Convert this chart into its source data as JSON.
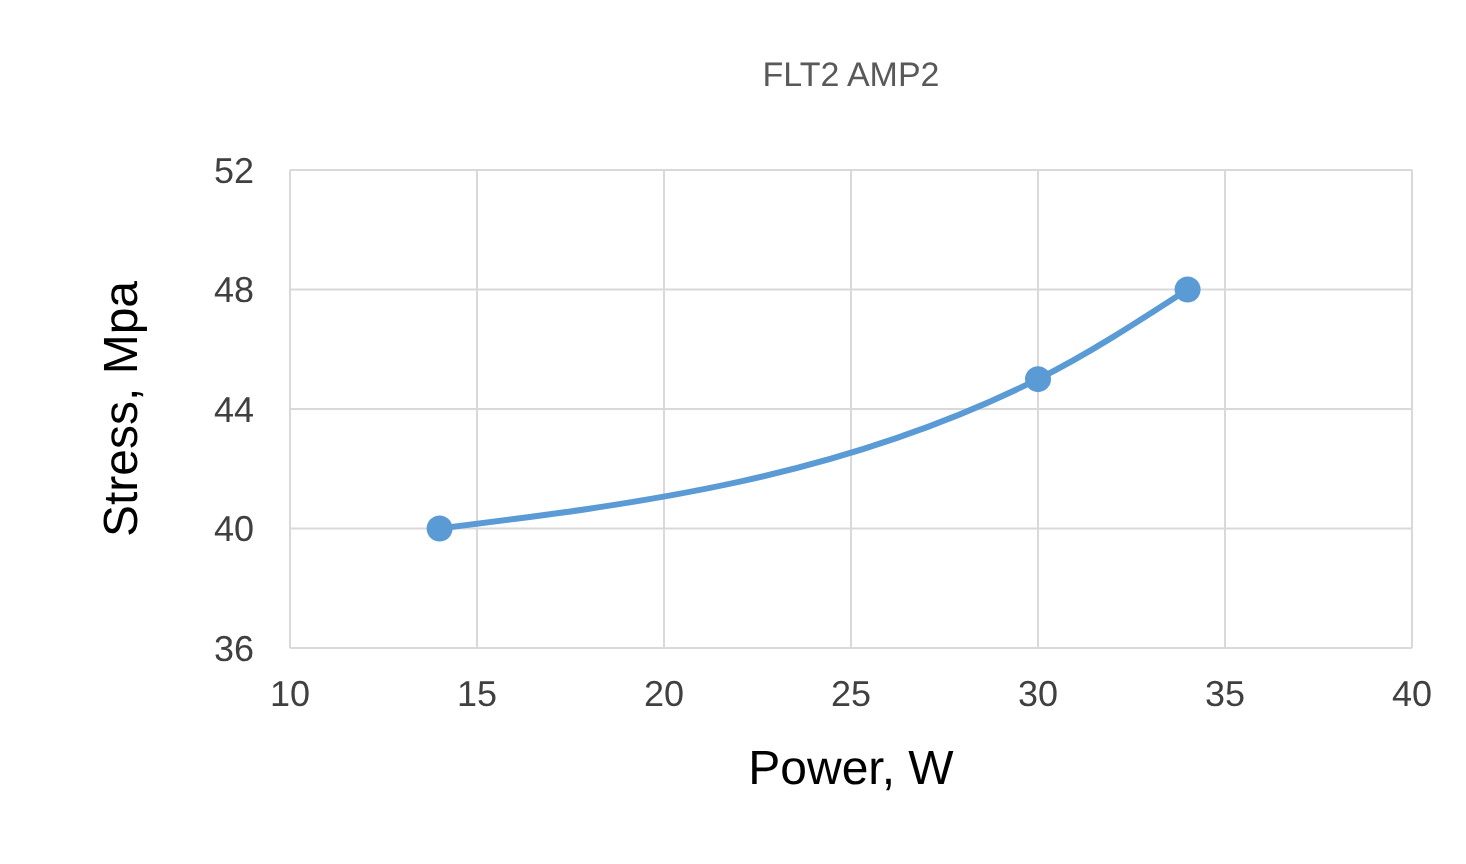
{
  "chart_data": {
    "type": "line",
    "title": "FLT2 AMP2",
    "xlabel": "Power, W",
    "ylabel": "Stress, Mpa",
    "x": [
      14,
      30,
      34
    ],
    "series": [
      {
        "color": "#5b9bd5",
        "values": [
          40,
          45,
          48
        ]
      }
    ],
    "xlim": [
      10,
      40
    ],
    "xticks": [
      10,
      15,
      20,
      25,
      30,
      35,
      40
    ],
    "ylim": [
      36,
      52
    ],
    "yticks": [
      36,
      40,
      44,
      48,
      52
    ],
    "grid": true,
    "legend": false,
    "marker": "circle",
    "line_style": "solid"
  }
}
